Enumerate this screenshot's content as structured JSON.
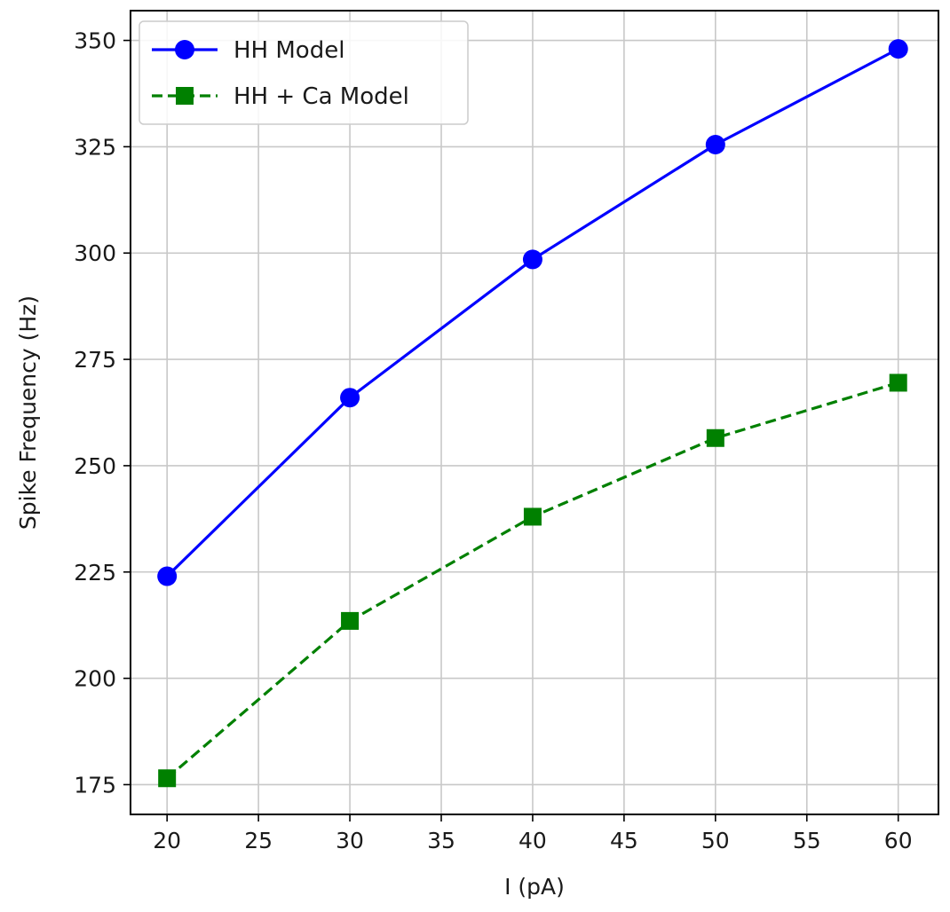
{
  "chart_data": {
    "type": "line",
    "title": "",
    "xlabel": "I (pA)",
    "ylabel": "Spike Frequency (Hz)",
    "xlim": [
      18,
      62.2
    ],
    "ylim": [
      168,
      357
    ],
    "xticks": [
      20,
      25,
      30,
      35,
      40,
      45,
      50,
      55,
      60
    ],
    "yticks": [
      175,
      200,
      225,
      250,
      275,
      300,
      325,
      350
    ],
    "grid": true,
    "legend_position": "top-left",
    "series": [
      {
        "name": "HH Model",
        "x": [
          20,
          30,
          40,
          50,
          60
        ],
        "values": [
          224,
          266,
          298.5,
          325.5,
          348
        ],
        "color": "#0000ff",
        "marker": "circle",
        "linestyle": "solid"
      },
      {
        "name": "HH + Ca Model",
        "x": [
          20,
          30,
          40,
          50,
          60
        ],
        "values": [
          176.5,
          213.5,
          238,
          256.5,
          269.5
        ],
        "color": "#008000",
        "marker": "square",
        "linestyle": "dashed"
      }
    ]
  }
}
